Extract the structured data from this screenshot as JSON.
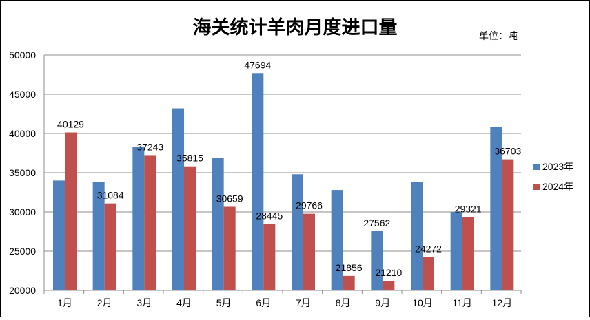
{
  "chart_data": {
    "type": "bar",
    "title": "海关统计羊肉月度进口量",
    "unit_label": "单位：吨",
    "categories": [
      "1月",
      "2月",
      "3月",
      "4月",
      "5月",
      "6月",
      "7月",
      "8月",
      "9月",
      "10月",
      "11月",
      "12月"
    ],
    "series": [
      {
        "name": "2023年",
        "color": "#4f81bd",
        "values": [
          34000,
          33800,
          38300,
          43200,
          36900,
          47694,
          34800,
          32800,
          27562,
          33800,
          30000,
          40800
        ],
        "labels": [
          "",
          "",
          "",
          "",
          "",
          "47694",
          "",
          "",
          "27562",
          "",
          "",
          ""
        ]
      },
      {
        "name": "2024年",
        "color": "#c0504d",
        "values": [
          40129,
          31084,
          37243,
          35815,
          30659,
          28445,
          29766,
          21856,
          21210,
          24272,
          29321,
          36703
        ],
        "labels": [
          "40129",
          "31084",
          "37243",
          "35815",
          "30659",
          "28445",
          "29766",
          "21856",
          "21210",
          "24272",
          "29321",
          "36703"
        ]
      }
    ],
    "ylim": [
      20000,
      50000
    ],
    "yticks": [
      20000,
      25000,
      30000,
      35000,
      40000,
      45000,
      50000
    ],
    "grid": true,
    "legend": "right"
  }
}
